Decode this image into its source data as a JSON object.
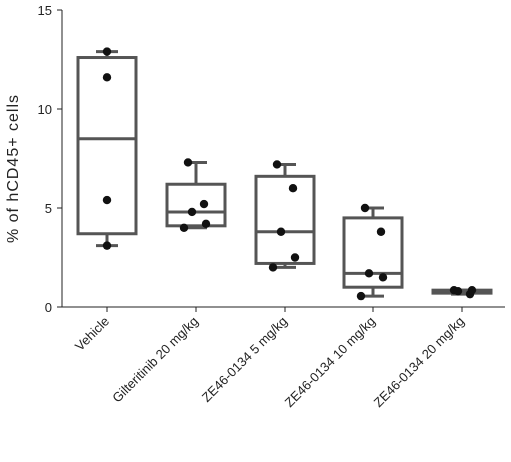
{
  "chart_data": {
    "type": "box",
    "title": "",
    "xlabel": "",
    "ylabel": "% of hCD45+ cells",
    "ylim": [
      0,
      15
    ],
    "yticks": [
      0,
      5,
      10,
      15
    ],
    "grid": false,
    "categories": [
      "Vehicle",
      "Gilteritinib 20 mg/kg",
      "ZE46-0134 5 mg/kg",
      "ZE46-0134 10 mg/kg",
      "ZE46-0134 20 mg/kg"
    ],
    "boxes": [
      {
        "min": 3.1,
        "q1": 3.7,
        "median": 8.5,
        "q3": 12.6,
        "max": 12.9,
        "points": [
          12.9,
          11.6,
          5.4,
          3.1
        ]
      },
      {
        "min": 4.0,
        "q1": 4.1,
        "median": 4.8,
        "q3": 6.2,
        "max": 7.3,
        "points": [
          7.3,
          5.2,
          4.8,
          4.2,
          4.0
        ]
      },
      {
        "min": 2.0,
        "q1": 2.2,
        "median": 3.8,
        "q3": 6.6,
        "max": 7.2,
        "points": [
          7.2,
          6.0,
          3.8,
          2.5,
          2.0
        ]
      },
      {
        "min": 0.55,
        "q1": 1.0,
        "median": 1.7,
        "q3": 4.5,
        "max": 5.0,
        "points": [
          5.0,
          3.8,
          1.7,
          1.5,
          0.55
        ]
      },
      {
        "min": 0.65,
        "q1": 0.7,
        "median": 0.8,
        "q3": 0.85,
        "max": 0.85,
        "points": [
          0.85,
          0.65,
          0.8,
          0.85
        ]
      }
    ],
    "colors": {
      "box": "#555555",
      "point": "#111111",
      "axis": "#222222"
    }
  }
}
